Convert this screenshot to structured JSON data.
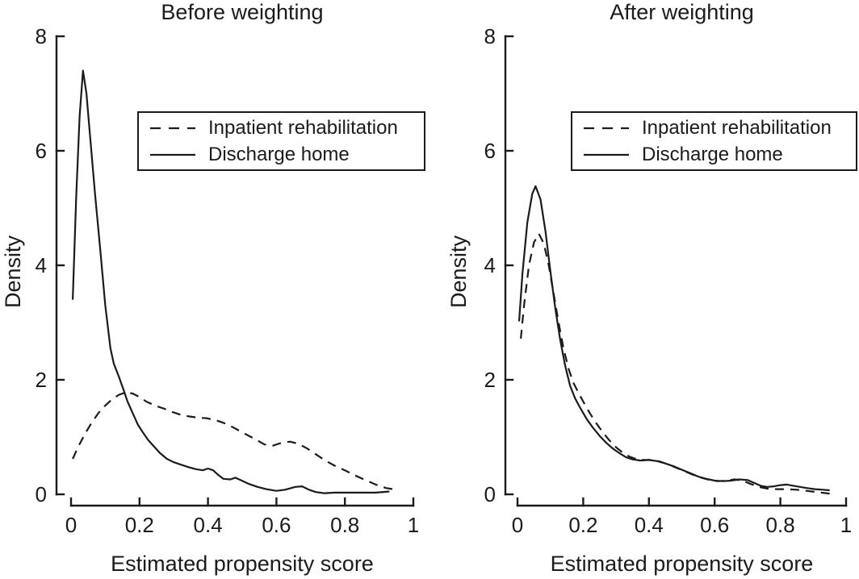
{
  "figure": {
    "background": "#ffffff",
    "ink_color": "#1b1b1b"
  },
  "legend": {
    "entries": [
      {
        "label": "Inpatient rehabilitation",
        "style": "dashed"
      },
      {
        "label": "Discharge home",
        "style": "solid"
      }
    ]
  },
  "chart_data": [
    {
      "type": "line",
      "title": "Before weighting",
      "xlabel": "Estimated propensity score",
      "ylabel": "Density",
      "xlim": [
        0,
        1
      ],
      "ylim": [
        0,
        8
      ],
      "xticks": [
        0,
        0.2,
        0.4,
        0.6,
        0.8,
        1
      ],
      "xtick_labels": [
        "0",
        "0.2",
        "0.4",
        "0.6",
        "0.8",
        "1"
      ],
      "yticks": [
        0,
        2,
        4,
        6,
        8
      ],
      "ytick_labels": [
        "0",
        "2",
        "4",
        "6",
        "8"
      ],
      "grid": false,
      "legend_position": "inside upper right",
      "series": [
        {
          "name": "Inpatient rehabilitation",
          "style": "dashed",
          "points": [
            [
              0.005,
              0.62
            ],
            [
              0.02,
              0.82
            ],
            [
              0.04,
              1.05
            ],
            [
              0.06,
              1.25
            ],
            [
              0.08,
              1.42
            ],
            [
              0.1,
              1.55
            ],
            [
              0.12,
              1.66
            ],
            [
              0.14,
              1.74
            ],
            [
              0.16,
              1.78
            ],
            [
              0.18,
              1.76
            ],
            [
              0.2,
              1.7
            ],
            [
              0.22,
              1.62
            ],
            [
              0.245,
              1.55
            ],
            [
              0.27,
              1.5
            ],
            [
              0.295,
              1.44
            ],
            [
              0.32,
              1.39
            ],
            [
              0.345,
              1.36
            ],
            [
              0.37,
              1.34
            ],
            [
              0.395,
              1.33
            ],
            [
              0.42,
              1.3
            ],
            [
              0.445,
              1.25
            ],
            [
              0.47,
              1.18
            ],
            [
              0.495,
              1.1
            ],
            [
              0.52,
              1.02
            ],
            [
              0.545,
              0.94
            ],
            [
              0.565,
              0.87
            ],
            [
              0.59,
              0.85
            ],
            [
              0.615,
              0.9
            ],
            [
              0.64,
              0.92
            ],
            [
              0.665,
              0.88
            ],
            [
              0.69,
              0.8
            ],
            [
              0.715,
              0.7
            ],
            [
              0.74,
              0.6
            ],
            [
              0.77,
              0.5
            ],
            [
              0.8,
              0.42
            ],
            [
              0.83,
              0.33
            ],
            [
              0.86,
              0.25
            ],
            [
              0.89,
              0.17
            ],
            [
              0.92,
              0.11
            ],
            [
              0.95,
              0.08
            ]
          ]
        },
        {
          "name": "Discharge home",
          "style": "solid",
          "points": [
            [
              0.005,
              3.4
            ],
            [
              0.015,
              5.2
            ],
            [
              0.025,
              6.6
            ],
            [
              0.035,
              7.4
            ],
            [
              0.045,
              7.0
            ],
            [
              0.055,
              6.3
            ],
            [
              0.07,
              5.25
            ],
            [
              0.085,
              4.3
            ],
            [
              0.1,
              3.3
            ],
            [
              0.115,
              2.55
            ],
            [
              0.125,
              2.28
            ],
            [
              0.14,
              2.05
            ],
            [
              0.155,
              1.8
            ],
            [
              0.165,
              1.62
            ],
            [
              0.18,
              1.42
            ],
            [
              0.195,
              1.22
            ],
            [
              0.21,
              1.08
            ],
            [
              0.225,
              0.95
            ],
            [
              0.24,
              0.85
            ],
            [
              0.26,
              0.72
            ],
            [
              0.28,
              0.62
            ],
            [
              0.3,
              0.56
            ],
            [
              0.32,
              0.52
            ],
            [
              0.345,
              0.47
            ],
            [
              0.365,
              0.44
            ],
            [
              0.385,
              0.42
            ],
            [
              0.4,
              0.45
            ],
            [
              0.415,
              0.42
            ],
            [
              0.43,
              0.34
            ],
            [
              0.445,
              0.27
            ],
            [
              0.465,
              0.26
            ],
            [
              0.48,
              0.29
            ],
            [
              0.495,
              0.25
            ],
            [
              0.52,
              0.18
            ],
            [
              0.545,
              0.13
            ],
            [
              0.57,
              0.09
            ],
            [
              0.6,
              0.06
            ],
            [
              0.625,
              0.08
            ],
            [
              0.655,
              0.13
            ],
            [
              0.675,
              0.14
            ],
            [
              0.695,
              0.08
            ],
            [
              0.715,
              0.04
            ],
            [
              0.74,
              0.02
            ],
            [
              0.77,
              0.03
            ],
            [
              0.81,
              0.03
            ],
            [
              0.85,
              0.03
            ],
            [
              0.89,
              0.03
            ],
            [
              0.93,
              0.05
            ]
          ]
        }
      ]
    },
    {
      "type": "line",
      "title": "After weighting",
      "xlabel": "Estimated propensity score",
      "ylabel": "Density",
      "xlim": [
        0,
        1
      ],
      "ylim": [
        0,
        8
      ],
      "xticks": [
        0,
        0.2,
        0.4,
        0.6,
        0.8,
        1
      ],
      "xtick_labels": [
        "0",
        "0.2",
        "0.4",
        "0.6",
        "0.8",
        "1"
      ],
      "yticks": [
        0,
        2,
        4,
        6,
        8
      ],
      "ytick_labels": [
        "0",
        "2",
        "4",
        "6",
        "8"
      ],
      "grid": false,
      "legend_position": "inside upper right",
      "series": [
        {
          "name": "Inpatient rehabilitation",
          "style": "dashed",
          "points": [
            [
              0.01,
              2.72
            ],
            [
              0.02,
              3.3
            ],
            [
              0.035,
              4.0
            ],
            [
              0.05,
              4.4
            ],
            [
              0.065,
              4.55
            ],
            [
              0.08,
              4.38
            ],
            [
              0.095,
              4.0
            ],
            [
              0.11,
              3.5
            ],
            [
              0.125,
              3.0
            ],
            [
              0.14,
              2.55
            ],
            [
              0.155,
              2.2
            ],
            [
              0.17,
              1.95
            ],
            [
              0.185,
              1.78
            ],
            [
              0.2,
              1.62
            ],
            [
              0.22,
              1.42
            ],
            [
              0.24,
              1.24
            ],
            [
              0.26,
              1.08
            ],
            [
              0.28,
              0.94
            ],
            [
              0.3,
              0.82
            ],
            [
              0.32,
              0.73
            ],
            [
              0.34,
              0.66
            ],
            [
              0.36,
              0.62
            ],
            [
              0.385,
              0.6
            ],
            [
              0.41,
              0.6
            ],
            [
              0.435,
              0.57
            ],
            [
              0.46,
              0.52
            ],
            [
              0.485,
              0.46
            ],
            [
              0.51,
              0.4
            ],
            [
              0.535,
              0.34
            ],
            [
              0.56,
              0.29
            ],
            [
              0.585,
              0.25
            ],
            [
              0.61,
              0.23
            ],
            [
              0.635,
              0.24
            ],
            [
              0.66,
              0.26
            ],
            [
              0.685,
              0.24
            ],
            [
              0.71,
              0.18
            ],
            [
              0.735,
              0.13
            ],
            [
              0.76,
              0.1
            ],
            [
              0.79,
              0.09
            ],
            [
              0.82,
              0.09
            ],
            [
              0.85,
              0.08
            ],
            [
              0.88,
              0.06
            ],
            [
              0.91,
              0.04
            ],
            [
              0.94,
              0.02
            ],
            [
              0.955,
              0.01
            ]
          ]
        },
        {
          "name": "Discharge home",
          "style": "solid",
          "points": [
            [
              0.005,
              3.02
            ],
            [
              0.015,
              3.85
            ],
            [
              0.03,
              4.75
            ],
            [
              0.045,
              5.25
            ],
            [
              0.055,
              5.38
            ],
            [
              0.07,
              5.15
            ],
            [
              0.085,
              4.6
            ],
            [
              0.1,
              3.9
            ],
            [
              0.115,
              3.25
            ],
            [
              0.13,
              2.7
            ],
            [
              0.145,
              2.25
            ],
            [
              0.16,
              1.9
            ],
            [
              0.175,
              1.68
            ],
            [
              0.19,
              1.52
            ],
            [
              0.21,
              1.32
            ],
            [
              0.23,
              1.16
            ],
            [
              0.25,
              1.02
            ],
            [
              0.27,
              0.9
            ],
            [
              0.29,
              0.8
            ],
            [
              0.31,
              0.72
            ],
            [
              0.33,
              0.65
            ],
            [
              0.35,
              0.61
            ],
            [
              0.375,
              0.59
            ],
            [
              0.4,
              0.6
            ],
            [
              0.425,
              0.58
            ],
            [
              0.45,
              0.54
            ],
            [
              0.475,
              0.49
            ],
            [
              0.5,
              0.43
            ],
            [
              0.525,
              0.37
            ],
            [
              0.55,
              0.31
            ],
            [
              0.575,
              0.27
            ],
            [
              0.6,
              0.24
            ],
            [
              0.625,
              0.23
            ],
            [
              0.65,
              0.24
            ],
            [
              0.675,
              0.26
            ],
            [
              0.7,
              0.25
            ],
            [
              0.72,
              0.2
            ],
            [
              0.74,
              0.15
            ],
            [
              0.76,
              0.13
            ],
            [
              0.78,
              0.14
            ],
            [
              0.8,
              0.16
            ],
            [
              0.82,
              0.17
            ],
            [
              0.84,
              0.15
            ],
            [
              0.86,
              0.13
            ],
            [
              0.88,
              0.11
            ],
            [
              0.905,
              0.09
            ],
            [
              0.93,
              0.08
            ],
            [
              0.95,
              0.07
            ]
          ]
        }
      ]
    }
  ]
}
